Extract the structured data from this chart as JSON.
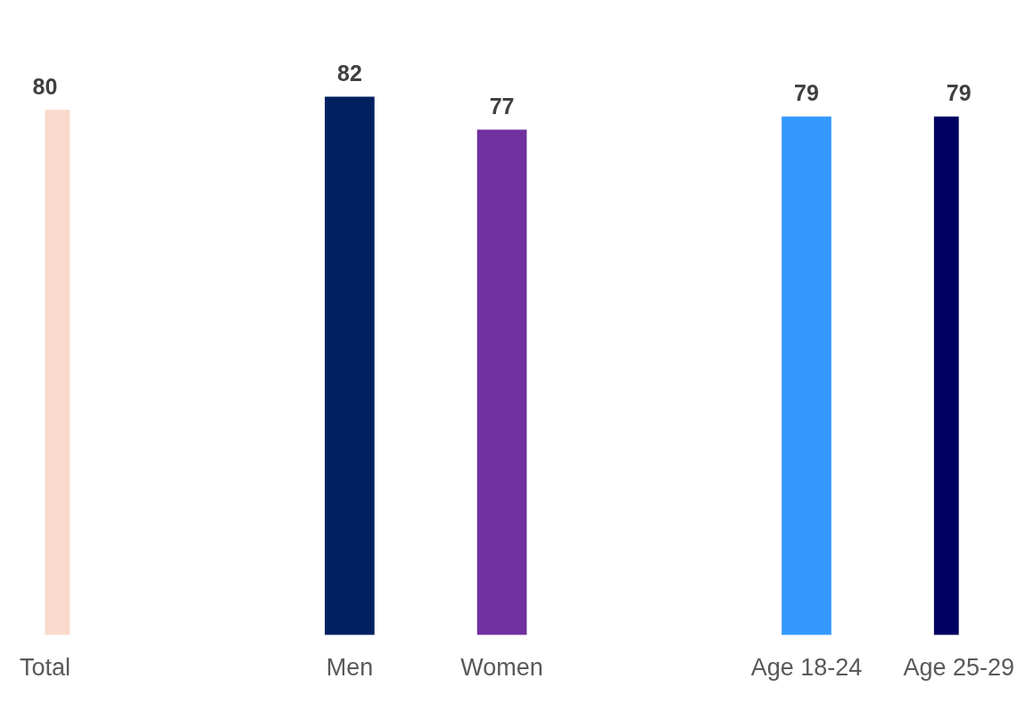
{
  "chart_data": {
    "type": "bar",
    "categories": [
      "Total",
      null,
      "Men",
      "Women",
      null,
      "Age 18-24",
      "Age 25-29"
    ],
    "values": [
      80,
      null,
      82,
      77,
      null,
      79,
      79
    ],
    "colors": [
      "#f9d9cb",
      null,
      "#002060",
      "#7030a0",
      null,
      "#3399ff",
      "#000060"
    ],
    "data_labels": true,
    "grid": false,
    "legend": false,
    "tick_labels": "x"
  }
}
